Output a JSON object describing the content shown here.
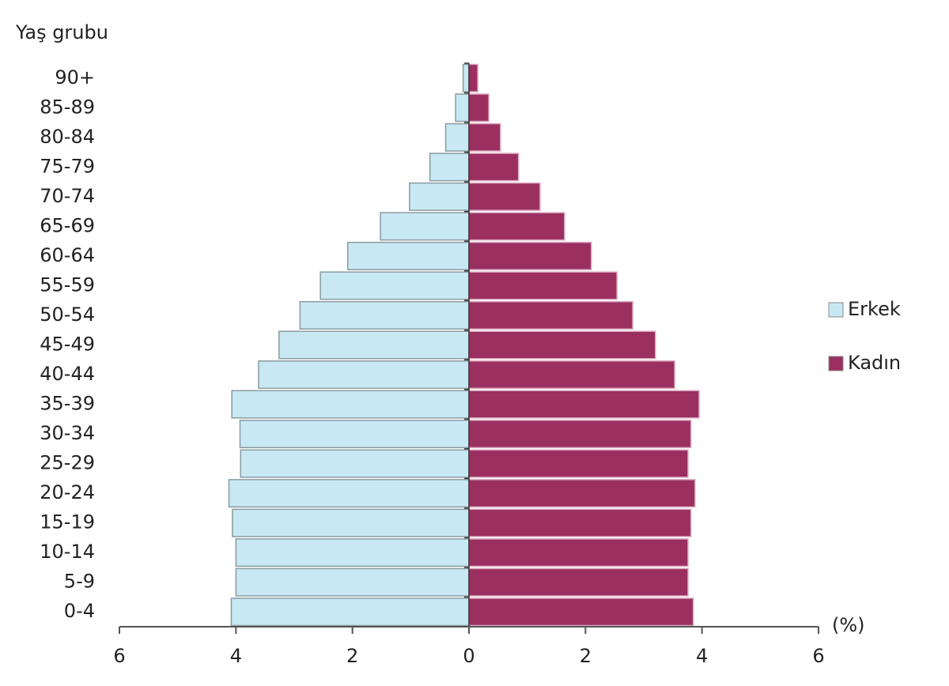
{
  "chart_data": {
    "type": "population_pyramid",
    "y_axis_label": "Yaş grubu",
    "x_axis_label": "(%)",
    "categories": [
      "0-4",
      "5-9",
      "10-14",
      "15-19",
      "20-24",
      "25-29",
      "30-34",
      "35-39",
      "40-44",
      "45-49",
      "50-54",
      "55-59",
      "60-64",
      "65-69",
      "70-74",
      "75-79",
      "80-84",
      "85-89",
      "90+"
    ],
    "series": [
      {
        "name": "Erkek",
        "color": "#c8e9f4",
        "side": "left",
        "values": [
          4.08,
          4.0,
          4.0,
          4.06,
          4.12,
          3.92,
          3.93,
          4.07,
          3.61,
          3.26,
          2.9,
          2.55,
          2.08,
          1.52,
          1.02,
          0.67,
          0.4,
          0.23,
          0.1
        ]
      },
      {
        "name": "Kadın",
        "color": "#9a2f60",
        "side": "right",
        "values": [
          3.85,
          3.76,
          3.76,
          3.81,
          3.88,
          3.76,
          3.81,
          3.95,
          3.53,
          3.2,
          2.81,
          2.54,
          2.1,
          1.64,
          1.22,
          0.85,
          0.54,
          0.34,
          0.15
        ]
      }
    ],
    "xlim": [
      -6,
      6
    ],
    "xticks": [
      {
        "value": -6,
        "label": "6"
      },
      {
        "value": -4,
        "label": "4"
      },
      {
        "value": -2,
        "label": "2"
      },
      0,
      2,
      4,
      6
    ],
    "legend": "right"
  }
}
